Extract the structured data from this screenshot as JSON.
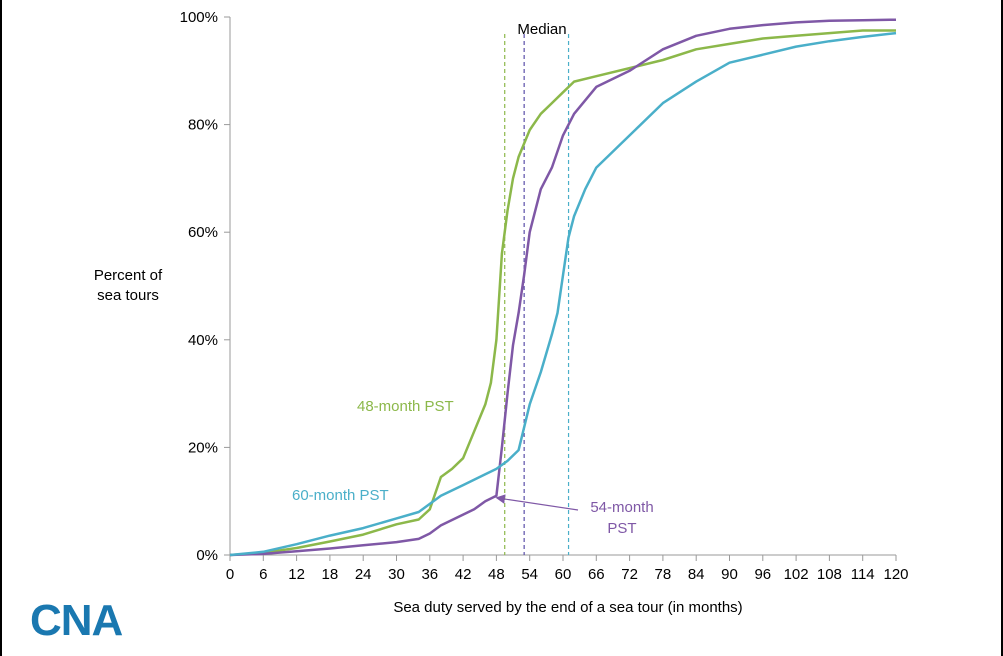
{
  "chart_data": {
    "type": "line",
    "xlabel": "Sea duty served by the end of a sea tour (in months)",
    "ylabel": "Percent of sea tours",
    "xlim": [
      0,
      120
    ],
    "ylim": [
      0,
      100
    ],
    "xticks": [
      0,
      6,
      12,
      18,
      24,
      30,
      36,
      42,
      48,
      54,
      60,
      66,
      72,
      78,
      84,
      90,
      96,
      102,
      108,
      114,
      120
    ],
    "yticks": [
      0,
      20,
      40,
      60,
      80,
      100
    ],
    "ytick_labels": [
      "0%",
      "20%",
      "40%",
      "60%",
      "80%",
      "100%"
    ],
    "grid": false,
    "legend": "none (series labeled inline)",
    "series": [
      {
        "name": "48-month PST",
        "color": "#8cb84a",
        "label_text": "48-month PST",
        "points": [
          [
            0,
            0
          ],
          [
            6,
            0.4
          ],
          [
            12,
            1.3
          ],
          [
            18,
            2.5
          ],
          [
            24,
            3.8
          ],
          [
            30,
            5.7
          ],
          [
            34,
            6.6
          ],
          [
            36,
            8.5
          ],
          [
            38,
            14.5
          ],
          [
            40,
            16
          ],
          [
            42,
            18
          ],
          [
            44,
            23
          ],
          [
            46,
            28
          ],
          [
            47,
            32
          ],
          [
            48,
            40
          ],
          [
            49,
            56
          ],
          [
            50,
            64
          ],
          [
            51,
            70
          ],
          [
            52,
            74
          ],
          [
            54,
            79
          ],
          [
            56,
            82
          ],
          [
            58,
            84
          ],
          [
            60,
            86
          ],
          [
            62,
            88
          ],
          [
            66,
            89
          ],
          [
            72,
            90.5
          ],
          [
            78,
            92
          ],
          [
            84,
            94
          ],
          [
            90,
            95
          ],
          [
            96,
            96
          ],
          [
            102,
            96.5
          ],
          [
            108,
            97
          ],
          [
            114,
            97.5
          ],
          [
            120,
            97.5
          ]
        ]
      },
      {
        "name": "54-month PST",
        "color": "#7f58a6",
        "label_text": "54-month PST",
        "points": [
          [
            0,
            0
          ],
          [
            6,
            0.2
          ],
          [
            12,
            0.7
          ],
          [
            18,
            1.2
          ],
          [
            24,
            1.8
          ],
          [
            30,
            2.4
          ],
          [
            34,
            3
          ],
          [
            36,
            4
          ],
          [
            38,
            5.5
          ],
          [
            40,
            6.5
          ],
          [
            42,
            7.5
          ],
          [
            44,
            8.5
          ],
          [
            46,
            10
          ],
          [
            48,
            11
          ],
          [
            49,
            20
          ],
          [
            50,
            30
          ],
          [
            51,
            39
          ],
          [
            52,
            45
          ],
          [
            53,
            52
          ],
          [
            54,
            60
          ],
          [
            56,
            68
          ],
          [
            58,
            72
          ],
          [
            60,
            78
          ],
          [
            62,
            82
          ],
          [
            66,
            87
          ],
          [
            72,
            90
          ],
          [
            78,
            94
          ],
          [
            84,
            96.5
          ],
          [
            90,
            97.8
          ],
          [
            96,
            98.5
          ],
          [
            102,
            99
          ],
          [
            108,
            99.3
          ],
          [
            114,
            99.4
          ],
          [
            120,
            99.5
          ]
        ]
      },
      {
        "name": "60-month PST",
        "color": "#4aafc9",
        "label_text": "60-month PST",
        "points": [
          [
            0,
            0
          ],
          [
            6,
            0.6
          ],
          [
            12,
            2
          ],
          [
            18,
            3.6
          ],
          [
            24,
            5
          ],
          [
            30,
            6.8
          ],
          [
            34,
            8
          ],
          [
            36,
            9.5
          ],
          [
            38,
            11
          ],
          [
            42,
            13
          ],
          [
            46,
            15
          ],
          [
            48,
            16
          ],
          [
            50,
            17.5
          ],
          [
            52,
            19.5
          ],
          [
            54,
            28
          ],
          [
            56,
            34
          ],
          [
            58,
            41
          ],
          [
            59,
            45
          ],
          [
            60,
            52
          ],
          [
            61,
            59
          ],
          [
            62,
            63
          ],
          [
            64,
            68
          ],
          [
            66,
            72
          ],
          [
            72,
            78
          ],
          [
            78,
            84
          ],
          [
            84,
            88
          ],
          [
            90,
            91.5
          ],
          [
            96,
            93
          ],
          [
            102,
            94.5
          ],
          [
            108,
            95.5
          ],
          [
            114,
            96.3
          ],
          [
            120,
            97
          ]
        ]
      }
    ],
    "median_lines": {
      "label": "Median",
      "lines": [
        {
          "series": "48-month PST",
          "x": 49.5,
          "color": "#8cb84a"
        },
        {
          "series": "54-month PST",
          "x": 53,
          "color": "#5a4fa8"
        },
        {
          "series": "60-month PST",
          "x": 61,
          "color": "#4aafc9"
        }
      ]
    },
    "annotations": {
      "label_54_line1": "54-month",
      "label_54_line2": "PST",
      "arrow_target_x": 47.5,
      "arrow_target_y": 11
    }
  },
  "ylabel_line1": "Percent of",
  "ylabel_line2": "sea tours",
  "logo_text": "CNA"
}
